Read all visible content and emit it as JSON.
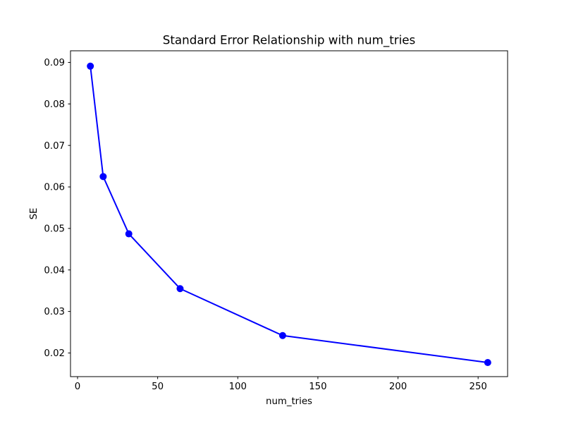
{
  "chart_data": {
    "type": "line",
    "title": "Standard Error Relationship with num_tries",
    "xlabel": "num_tries",
    "ylabel": "SE",
    "x": [
      8,
      16,
      32,
      64,
      128,
      256
    ],
    "y": [
      0.0891,
      0.0625,
      0.0487,
      0.0355,
      0.0242,
      0.0177
    ],
    "xlim": [
      -4.4,
      268.4
    ],
    "ylim": [
      0.0143,
      0.0928
    ],
    "x_tick_values": [
      0,
      50,
      100,
      150,
      200,
      250
    ],
    "x_tick_labels": [
      "0",
      "50",
      "100",
      "150",
      "200",
      "250"
    ],
    "y_tick_values": [
      0.02,
      0.03,
      0.04,
      0.05,
      0.06,
      0.07,
      0.08,
      0.09
    ],
    "y_tick_labels": [
      "0.02",
      "0.03",
      "0.04",
      "0.05",
      "0.06",
      "0.07",
      "0.08",
      "0.09"
    ],
    "grid": false,
    "legend_position": "none",
    "line_color": "#0000ff",
    "marker": "circle",
    "marker_color": "#0000ff",
    "background_color": "#ffffff",
    "spine_color": "#000000",
    "text_color": "#000000"
  }
}
